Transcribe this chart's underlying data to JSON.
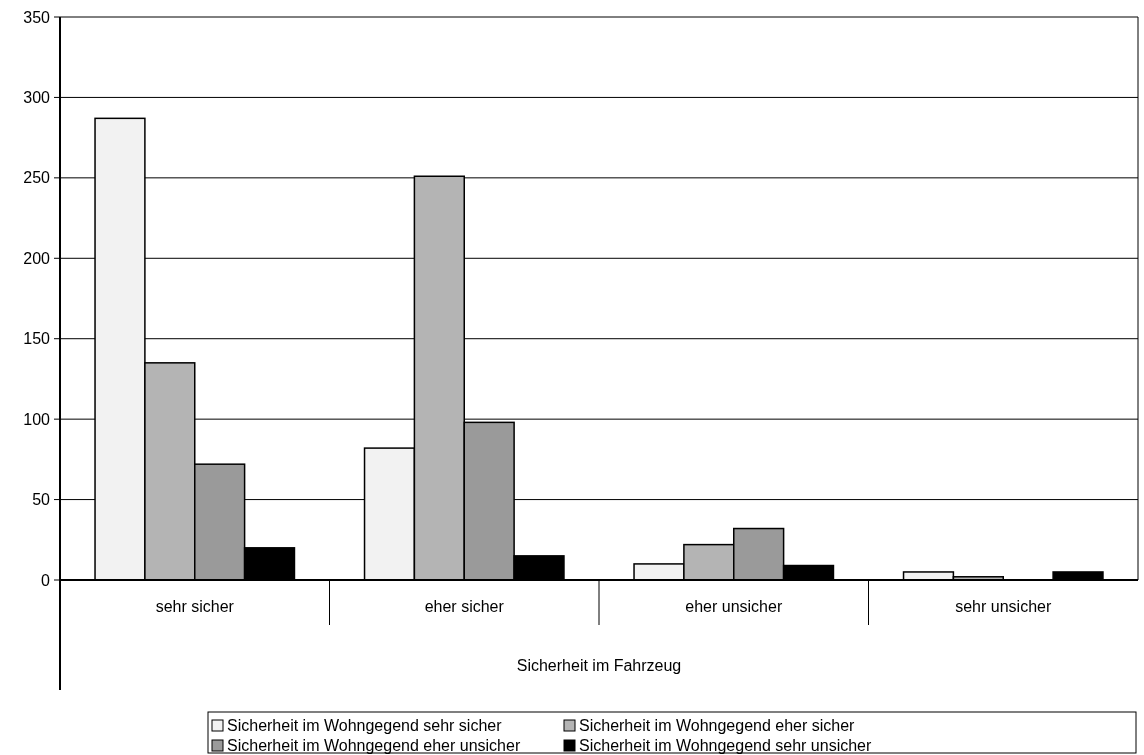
{
  "chart_data": {
    "type": "bar",
    "xlabel": "Sicherheit im Fahrzeug",
    "categories": [
      "sehr sicher",
      "eher sicher",
      "eher unsicher",
      "sehr unsicher"
    ],
    "series": [
      {
        "name": "Sicherheit im Wohngegend sehr sicher",
        "color": "#f2f2f2",
        "values": [
          287,
          82,
          10,
          5
        ]
      },
      {
        "name": "Sicherheit im Wohngegend eher sicher",
        "color": "#b4b4b4",
        "values": [
          135,
          251,
          22,
          2
        ]
      },
      {
        "name": "Sicherheit im Wohngegend eher unsicher",
        "color": "#9a9a9a",
        "values": [
          72,
          98,
          32,
          0
        ]
      },
      {
        "name": "Sicherheit im Wohngegend sehr unsicher",
        "color": "#000000",
        "values": [
          20,
          15,
          9,
          5
        ]
      }
    ],
    "ylim": [
      0,
      350
    ],
    "yticks": [
      0,
      50,
      100,
      150,
      200,
      250,
      300,
      350
    ],
    "grid": "y",
    "legend": "bottom"
  }
}
